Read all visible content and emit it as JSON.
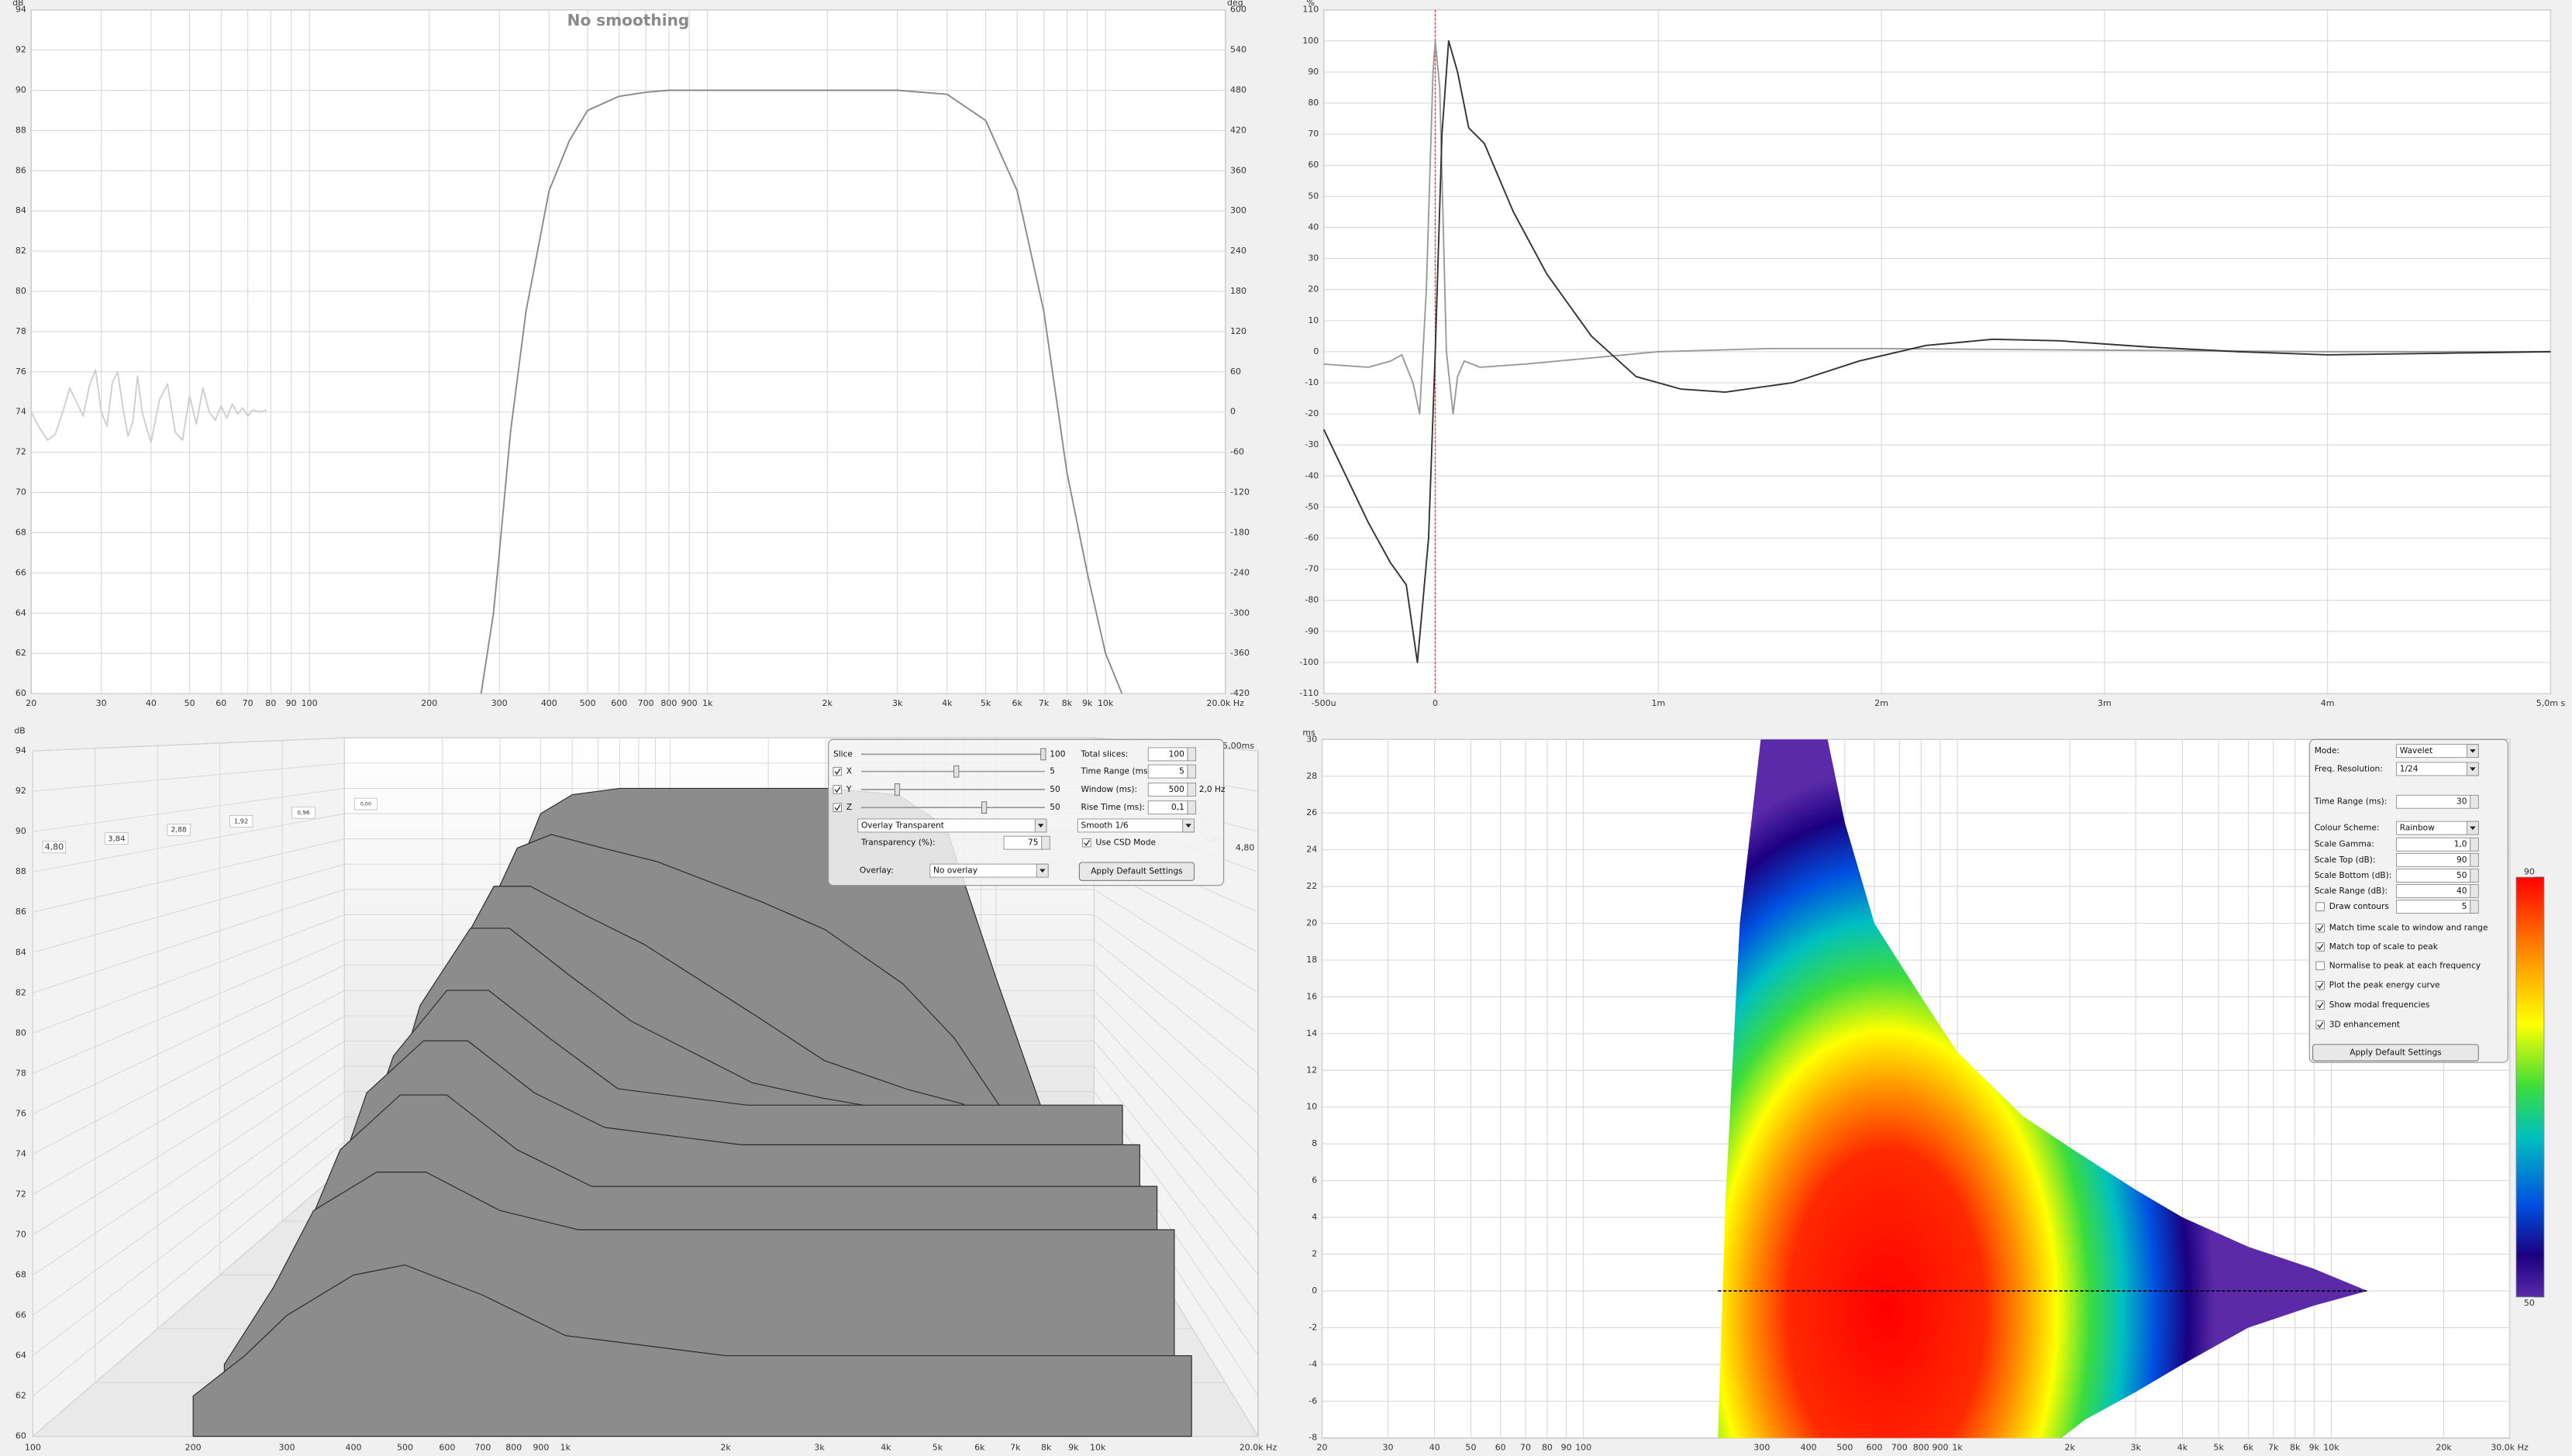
{
  "chart_data": [
    {
      "type": "line",
      "title": "No smoothing",
      "y_label": "dB",
      "y2_label": "deg",
      "xscale": "log",
      "grid": true,
      "xlim": [
        20,
        20000
      ],
      "xticks": [
        20,
        30,
        40,
        50,
        60,
        70,
        80,
        90,
        100,
        200,
        300,
        400,
        500,
        600,
        700,
        800,
        900,
        {
          "value": 1000,
          "label": "1k"
        },
        {
          "value": 2000,
          "label": "2k"
        },
        {
          "value": 3000,
          "label": "3k"
        },
        {
          "value": 4000,
          "label": "4k"
        },
        {
          "value": 5000,
          "label": "5k"
        },
        {
          "value": 6000,
          "label": "6k"
        },
        {
          "value": 7000,
          "label": "7k"
        },
        {
          "value": 8000,
          "label": "8k"
        },
        {
          "value": 9000,
          "label": "9k"
        },
        {
          "value": 10000,
          "label": "10k"
        },
        {
          "value": 20000,
          "label": "20.0k Hz"
        }
      ],
      "ylim": [
        60,
        94
      ],
      "yticks": [
        60,
        62,
        64,
        66,
        68,
        70,
        72,
        74,
        76,
        78,
        80,
        82,
        84,
        86,
        88,
        90,
        92,
        94
      ],
      "y2lim": [
        -420,
        600
      ],
      "y2ticks": [
        -420,
        -360,
        -300,
        -240,
        -180,
        -120,
        -60,
        0,
        60,
        120,
        180,
        240,
        300,
        360,
        420,
        480,
        540,
        600
      ],
      "series": [
        {
          "color": "#8a8a8a",
          "x": [
            270,
            290,
            300,
            320,
            350,
            400,
            450,
            500,
            600,
            700,
            800,
            1000,
            2000,
            3000,
            4000,
            5000,
            6000,
            7000,
            8000,
            9000,
            10000,
            11000
          ],
          "values": [
            60,
            64,
            67,
            73,
            79,
            85,
            87.5,
            89,
            89.7,
            89.9,
            90,
            90,
            90,
            90,
            89.8,
            88.5,
            85,
            79,
            71,
            66,
            62,
            60
          ]
        },
        {
          "color": "#cfcfcf",
          "x": [
            20,
            21,
            22,
            23,
            24,
            25,
            26,
            27,
            28,
            29,
            30,
            31,
            32,
            33,
            34,
            35,
            36,
            37,
            38,
            39,
            40,
            42,
            44,
            46,
            48,
            50,
            52,
            54,
            56,
            58,
            60,
            62,
            64,
            66,
            68,
            70,
            72,
            75,
            78
          ],
          "values": [
            74,
            73.2,
            72.6,
            72.9,
            74,
            75.2,
            74.5,
            73.8,
            75.3,
            76.1,
            74,
            73.3,
            75.5,
            76,
            74.2,
            72.8,
            73.5,
            75.8,
            74,
            73.2,
            72.5,
            74.6,
            75.4,
            73,
            72.6,
            74.8,
            73.4,
            75.2,
            74,
            73.6,
            74.3,
            73.7,
            74.4,
            73.9,
            74.2,
            73.8,
            74.1,
            74,
            74.1
          ]
        }
      ]
    },
    {
      "type": "line",
      "y_label": "%",
      "grid": true,
      "cursor_x": 0,
      "cursor_color": "#e03030",
      "xlim": [
        -0.0005,
        0.005
      ],
      "xticks": [
        {
          "value": -0.0005,
          "label": "-500u"
        },
        0,
        {
          "value": 0.001,
          "label": "1m"
        },
        {
          "value": 0.002,
          "label": "2m"
        },
        {
          "value": 0.003,
          "label": "3m"
        },
        {
          "value": 0.004,
          "label": "4m"
        },
        {
          "value": 0.005,
          "label": "5,0m s"
        }
      ],
      "ylim": [
        -110,
        110
      ],
      "yticks": [
        -110,
        -100,
        -90,
        -80,
        -70,
        -60,
        -50,
        -40,
        -30,
        -20,
        -10,
        0,
        10,
        20,
        30,
        40,
        50,
        60,
        70,
        80,
        90,
        100,
        110
      ],
      "series": [
        {
          "color": "#9a9a9a",
          "x": [
            -0.0005,
            -0.0003,
            -0.0002,
            -0.00015,
            -0.0001,
            -7e-05,
            -4e-05,
            -1e-05,
            0,
            2e-05,
            5e-05,
            8e-05,
            0.0001,
            0.00013,
            0.0002,
            0.0004,
            0.0007,
            0.001,
            0.0015,
            0.002,
            0.003,
            0.004,
            0.005
          ],
          "values": [
            -4,
            -5,
            -3,
            -1,
            -10,
            -20,
            20,
            90,
            100,
            85,
            0,
            -20,
            -8,
            -3,
            -5,
            -4,
            -2,
            0,
            1,
            1,
            0.5,
            0,
            0
          ]
        },
        {
          "color": "#333333",
          "x": [
            -0.0005,
            -0.0004,
            -0.0003,
            -0.0002,
            -0.00013,
            -8e-05,
            -3e-05,
            0,
            3e-05,
            6e-05,
            0.0001,
            0.00015,
            0.00022,
            0.00035,
            0.0005,
            0.0007,
            0.0009,
            0.0011,
            0.0013,
            0.0016,
            0.0019,
            0.0022,
            0.0025,
            0.0028,
            0.0032,
            0.0036,
            0.004,
            0.0045,
            0.005
          ],
          "values": [
            -25,
            -40,
            -55,
            -68,
            -75,
            -100,
            -60,
            0,
            70,
            100,
            90,
            72,
            67,
            45,
            25,
            5,
            -8,
            -12,
            -13,
            -10,
            -3,
            2,
            4,
            3.5,
            1.5,
            0,
            -1,
            -0.5,
            0
          ]
        }
      ]
    },
    {
      "type": "waterfall",
      "y_label": "dB",
      "xscale": "log",
      "time_range_label": "5,00ms",
      "xlim": [
        100,
        20000
      ],
      "xticks": [
        100,
        200,
        300,
        400,
        500,
        600,
        700,
        800,
        900,
        {
          "value": 1000,
          "label": "1k"
        },
        {
          "value": 2000,
          "label": "2k"
        },
        {
          "value": 3000,
          "label": "3k"
        },
        {
          "value": 4000,
          "label": "4k"
        },
        {
          "value": 5000,
          "label": "5k"
        },
        {
          "value": 6000,
          "label": "6k"
        },
        {
          "value": 7000,
          "label": "7k"
        },
        {
          "value": 8000,
          "label": "8k"
        },
        {
          "value": 9000,
          "label": "9k"
        },
        {
          "value": 10000,
          "label": "10k"
        },
        {
          "value": 20000,
          "label": "20.0k Hz"
        }
      ],
      "ylim": [
        60,
        94
      ],
      "yticks": [
        60,
        62,
        64,
        66,
        68,
        70,
        72,
        74,
        76,
        78,
        80,
        82,
        84,
        86,
        88,
        90,
        92,
        94
      ],
      "zlim": [
        0,
        4.8
      ],
      "zticks": [
        {
          "value": 0,
          "label": "0,00"
        },
        {
          "value": 0.96,
          "label": "0,96"
        },
        {
          "value": 1.92,
          "label": "1,92"
        },
        {
          "value": 2.88,
          "label": "2,88"
        },
        {
          "value": 3.84,
          "label": "3,84"
        },
        {
          "value": 4.8,
          "label": "4,80"
        }
      ],
      "x": [
        200,
        250,
        300,
        400,
        500,
        700,
        1000,
        2000,
        3000,
        5000,
        7000,
        10000,
        15000
      ],
      "series": [
        {
          "time": 0,
          "color": "#8c8c8c",
          "values": [
            62,
            72,
            80,
            88,
            89.5,
            90,
            90,
            90,
            90,
            89.5,
            87,
            75,
            62
          ]
        },
        {
          "time": 0.6,
          "color": "#8c8c8c",
          "values": [
            62,
            71,
            79,
            86,
            87,
            86,
            85,
            82,
            80,
            76,
            72,
            66,
            62
          ]
        },
        {
          "time": 1.2,
          "color": "#8c8c8c",
          "values": [
            62,
            70,
            78,
            84,
            84,
            82,
            80,
            75,
            72,
            70,
            69,
            66,
            62
          ]
        },
        {
          "time": 1.8,
          "color": "#8c8c8c",
          "values": [
            62,
            70,
            77,
            82,
            82,
            79,
            76,
            72,
            71,
            70,
            68,
            66,
            62
          ]
        },
        {
          "time": 2.4,
          "color": "#8c8c8c",
          "values": [
            62,
            69,
            75,
            79,
            79,
            76,
            73,
            72,
            72,
            72,
            72,
            72,
            72
          ]
        },
        {
          "time": 3.0,
          "color": "#8c8c8c",
          "values": [
            62,
            68,
            74,
            77,
            77,
            74,
            72,
            71,
            71,
            71,
            71,
            71,
            71
          ]
        },
        {
          "time": 3.6,
          "color": "#8c8c8c",
          "values": [
            62,
            67,
            72,
            75,
            75,
            72,
            70,
            70,
            70,
            70,
            70,
            70,
            70
          ]
        },
        {
          "time": 4.2,
          "color": "#8c8c8c",
          "values": [
            62,
            66,
            70,
            72,
            72,
            70,
            69,
            69,
            69,
            69,
            69,
            69,
            69
          ]
        },
        {
          "time": 4.8,
          "color": "#8c8c8c",
          "values": [
            62,
            64,
            66,
            68,
            68.5,
            67,
            65,
            64,
            64,
            64,
            64,
            64,
            64
          ]
        }
      ],
      "controls": {
        "sliders": [
          {
            "label": "Slice",
            "value": 100
          },
          {
            "label": "X",
            "value": 5,
            "checked": true
          },
          {
            "label": "Y",
            "value": 50,
            "checked": true
          },
          {
            "label": "Z",
            "value": 50,
            "checked": true
          }
        ],
        "fields": [
          {
            "label": "Total slices:",
            "value": 100
          },
          {
            "label": "Time Range (ms):",
            "value": 5
          },
          {
            "label": "Window (ms):",
            "value": 500,
            "unit": "2,0 Hz"
          },
          {
            "label": "Rise Time (ms):",
            "value": "0,1"
          }
        ],
        "style": "Overlay Transparent",
        "smoothing": "Smooth 1/6",
        "transparency_label": "Transparency (%):",
        "transparency": 75,
        "csd_label": "Use CSD Mode",
        "csd": true,
        "overlay_label": "Overlay:",
        "overlay": "No overlay",
        "button": "Apply Default Settings"
      }
    },
    {
      "type": "spectrogram",
      "y_label": "ms",
      "xscale": "log",
      "grid": true,
      "colour_scheme": "Rainbow",
      "xlim": [
        20,
        30000
      ],
      "xticks": [
        20,
        30,
        40,
        50,
        60,
        70,
        80,
        90,
        100,
        300,
        400,
        500,
        600,
        700,
        800,
        900,
        {
          "value": 1000,
          "label": "1k"
        },
        {
          "value": 2000,
          "label": "2k"
        },
        {
          "value": 3000,
          "label": "3k"
        },
        {
          "value": 4000,
          "label": "4k"
        },
        {
          "value": 5000,
          "label": "5k"
        },
        {
          "value": 6000,
          "label": "6k"
        },
        {
          "value": 7000,
          "label": "7k"
        },
        {
          "value": 8000,
          "label": "8k"
        },
        {
          "value": 9000,
          "label": "9k"
        },
        {
          "value": 10000,
          "label": "10k"
        },
        {
          "value": 20000,
          "label": "20k"
        },
        {
          "value": 30000,
          "label": "30.0k Hz"
        }
      ],
      "ylim": [
        -8,
        30
      ],
      "yticks": [
        -8,
        -6,
        -4,
        -2,
        0,
        2,
        4,
        6,
        8,
        10,
        12,
        14,
        16,
        18,
        20,
        22,
        24,
        26,
        28,
        30
      ],
      "zlim": [
        50,
        90
      ],
      "zticks": [
        90,
        50
      ],
      "outline": {
        "x": [
          298,
          450,
          500,
          600,
          800,
          1000,
          1500,
          2000,
          3000,
          4000,
          6000,
          9000,
          12500,
          9000,
          6000,
          4000,
          3000,
          2200,
          1900,
          229,
          240,
          262
        ],
        "values": [
          30,
          30,
          25.5,
          20,
          16,
          13,
          9.5,
          7.8,
          5.5,
          4,
          2.4,
          1.2,
          0,
          -0.8,
          -2,
          -4,
          -5.5,
          -7,
          -8,
          -8,
          5,
          20
        ]
      },
      "peak_curve": {
        "x": [
          229,
          12500
        ],
        "values": [
          0,
          0
        ],
        "color": "#000000"
      },
      "controls": {
        "fields": [
          {
            "label": "Mode:",
            "value": "Wavelet",
            "dropdown": true
          },
          {
            "label": "Freq. Resolution:",
            "value": "1/24",
            "dropdown": true
          },
          {
            "label": "Time Range (ms):",
            "value": 30
          },
          {
            "label": "Colour Scheme:",
            "value": "Rainbow",
            "dropdown": true
          },
          {
            "label": "Scale Gamma:",
            "value": "1,0"
          },
          {
            "label": "Scale Top (dB):",
            "value": 90
          },
          {
            "label": "Scale Bottom (dB):",
            "value": 50
          },
          {
            "label": "Scale Range (dB):",
            "value": 40
          }
        ],
        "contours": {
          "label": "Draw contours",
          "checked": false,
          "value": 5
        },
        "options": [
          {
            "label": "Match time scale to window and range",
            "checked": true
          },
          {
            "label": "Match top of scale to peak",
            "checked": true
          },
          {
            "label": "Normalise to peak at each frequency",
            "checked": false
          },
          {
            "label": "Plot the peak energy curve",
            "checked": true
          },
          {
            "label": "Show modal frequencies",
            "checked": true
          },
          {
            "label": "3D enhancement",
            "checked": true
          }
        ],
        "button": "Apply Default Settings"
      }
    }
  ]
}
